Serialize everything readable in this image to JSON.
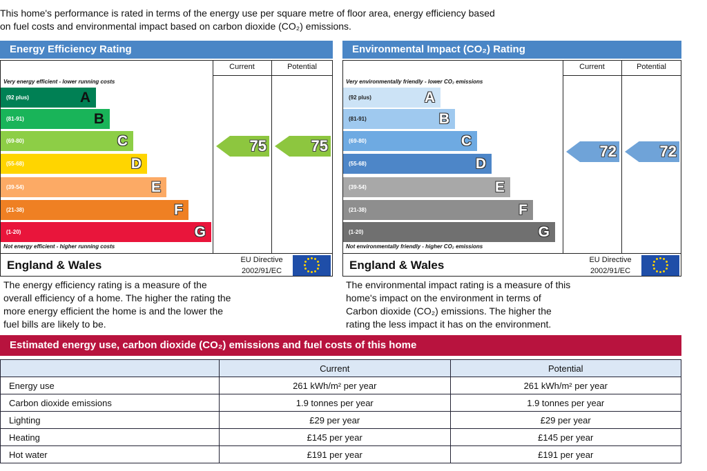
{
  "intro": [
    "This home's performance is rated in terms of the energy use per square metre of floor area, energy efficiency based",
    "on fuel costs and environmental impact based on carbon dioxide (CO₂) emissions."
  ],
  "energy": {
    "title": "Energy Efficiency Rating",
    "headers": {
      "current": "Current",
      "potential": "Potential"
    },
    "top_note": "Very energy efficient - lower running costs",
    "bottom_note": "Not energy efficient - higher running costs",
    "bands": [
      {
        "range": "(92 plus)",
        "letter": "A",
        "color": "#008054"
      },
      {
        "range": "(81-91)",
        "letter": "B",
        "color": "#19b459"
      },
      {
        "range": "(69-80)",
        "letter": "C",
        "color": "#8dce46"
      },
      {
        "range": "(55-68)",
        "letter": "D",
        "color": "#ffd500"
      },
      {
        "range": "(39-54)",
        "letter": "E",
        "color": "#fcaa65"
      },
      {
        "range": "(21-38)",
        "letter": "F",
        "color": "#ef8023"
      },
      {
        "range": "(1-20)",
        "letter": "G",
        "color": "#e9153b"
      }
    ],
    "current": 75,
    "potential": 75,
    "region": "England & Wales",
    "directive": [
      "EU Directive",
      "2002/91/EC"
    ],
    "description": [
      "The energy efficiency rating is a measure of the",
      "overall efficiency of a home. The higher the rating the",
      "more energy efficient the home is and the lower the",
      "fuel bills are likely to be."
    ]
  },
  "environment": {
    "title": "Environmental Impact (CO₂) Rating",
    "headers": {
      "current": "Current",
      "potential": "Potential"
    },
    "top_note": "Very environmentally friendly - lower CO₂ emissions",
    "bottom_note": "Not environmentally friendly - higher CO₂ emissions",
    "bands": [
      {
        "range": "(92 plus)",
        "letter": "A",
        "color": "#cce3f6"
      },
      {
        "range": "(81-91)",
        "letter": "B",
        "color": "#9fc9ef"
      },
      {
        "range": "(69-80)",
        "letter": "C",
        "color": "#6eaae2"
      },
      {
        "range": "(55-68)",
        "letter": "D",
        "color": "#4d86c8"
      },
      {
        "range": "(39-54)",
        "letter": "E",
        "color": "#a8a8a8"
      },
      {
        "range": "(21-38)",
        "letter": "F",
        "color": "#8e8e8e"
      },
      {
        "range": "(1-20)",
        "letter": "G",
        "color": "#707070"
      }
    ],
    "current": 72,
    "potential": 72,
    "region": "England & Wales",
    "directive": [
      "EU Directive",
      "2002/91/EC"
    ],
    "description": [
      "The environmental impact rating is a measure of this",
      "home's impact on the environment in terms of",
      "Carbon dioxide (CO₂) emissions. The higher the",
      "rating the less impact it has on the environment."
    ]
  },
  "costs": {
    "title": "Estimated energy use, carbon dioxide (CO₂) emissions and fuel costs of this home",
    "headers": [
      "Current",
      "Potential"
    ],
    "rows": [
      [
        "Energy use",
        "261 kWh/m² per year",
        "261 kWh/m² per year"
      ],
      [
        "Carbon dioxide emissions",
        "1.9 tonnes per year",
        "1.9 tonnes per year"
      ],
      [
        "Lighting",
        "£29 per year",
        "£29 per year"
      ],
      [
        "Heating",
        "£145 per year",
        "£145 per year"
      ],
      [
        "Hot water",
        "£191 per year",
        "£191 per year"
      ]
    ]
  }
}
